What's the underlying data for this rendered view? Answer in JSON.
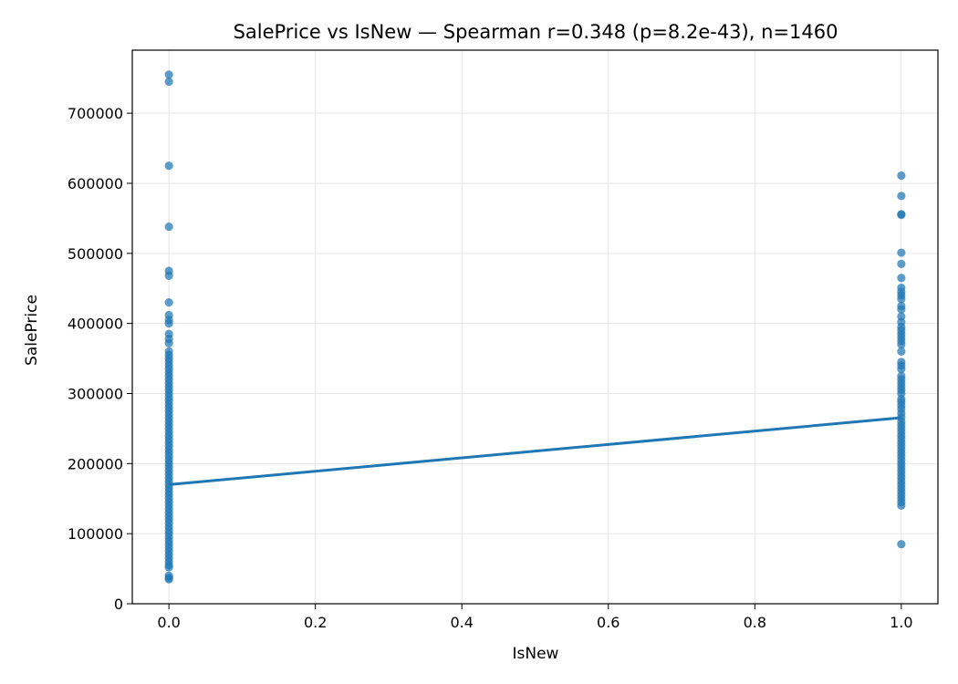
{
  "chart_data": {
    "type": "scatter",
    "title": "SalePrice vs IsNew — Spearman r=0.348 (p=8.2e-43), n=1460",
    "xlabel": "IsNew",
    "ylabel": "SalePrice",
    "xlim": [
      -0.05,
      1.05
    ],
    "ylim": [
      0,
      790000
    ],
    "grid": true,
    "x_ticks": [
      0.0,
      0.2,
      0.4,
      0.6,
      0.8,
      1.0
    ],
    "x_tick_labels": [
      "0.0",
      "0.2",
      "0.4",
      "0.6",
      "0.8",
      "1.0"
    ],
    "y_ticks": [
      0,
      100000,
      200000,
      300000,
      400000,
      500000,
      600000,
      700000
    ],
    "y_tick_labels": [
      "0",
      "100000",
      "200000",
      "300000",
      "400000",
      "500000",
      "600000",
      "700000"
    ],
    "colors": {
      "points": "#1f77b4",
      "fit_line": "#1f77b4",
      "grid": "#e6e6e6"
    },
    "series": [
      {
        "x": 0,
        "values": [
          755000,
          745000,
          625000,
          538000,
          475000,
          468000,
          430000,
          412000,
          405000,
          400000,
          385000,
          378000,
          372000,
          360000,
          355000,
          350000,
          345000,
          340000,
          335000,
          330000,
          325000,
          320000,
          315000,
          310000,
          305000,
          300000,
          295000,
          290000,
          285000,
          280000,
          275000,
          270000,
          265000,
          260000,
          255000,
          250000,
          245000,
          240000,
          235000,
          230000,
          225000,
          220000,
          215000,
          210000,
          205000,
          200000,
          195000,
          190000,
          185000,
          180000,
          175000,
          170000,
          165000,
          160000,
          155000,
          150000,
          145000,
          140000,
          135000,
          130000,
          125000,
          120000,
          115000,
          110000,
          105000,
          100000,
          95000,
          90000,
          85000,
          80000,
          75000,
          70000,
          65000,
          60000,
          55000,
          52000,
          40000,
          37000,
          35000
        ]
      },
      {
        "x": 1,
        "values": [
          611000,
          582000,
          556000,
          555000,
          501000,
          485000,
          465000,
          451000,
          445000,
          440000,
          435000,
          425000,
          420000,
          410000,
          402000,
          395000,
          390000,
          385000,
          380000,
          375000,
          370000,
          360000,
          345000,
          340000,
          335000,
          325000,
          320000,
          315000,
          310000,
          305000,
          300000,
          292000,
          288000,
          283000,
          278000,
          272000,
          266000,
          260000,
          255000,
          250000,
          245000,
          240000,
          235000,
          230000,
          225000,
          220000,
          215000,
          210000,
          205000,
          200000,
          195000,
          190000,
          185000,
          180000,
          175000,
          170000,
          165000,
          160000,
          155000,
          150000,
          145000,
          140000,
          85000
        ]
      }
    ],
    "fit_line": {
      "x": [
        0,
        1
      ],
      "y": [
        170000,
        265500
      ]
    }
  }
}
